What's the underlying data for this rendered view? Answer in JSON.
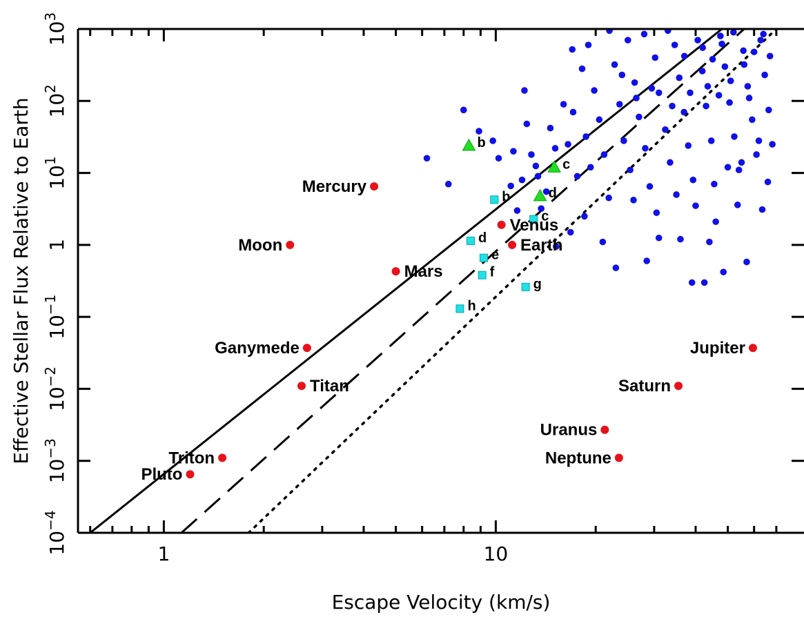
{
  "chart_data": {
    "type": "scatter",
    "xlabel": "Escape Velocity (km/s)",
    "ylabel": "Effective Stellar Flux Relative to Earth",
    "x_scale": "log",
    "y_scale": "log",
    "xlim": [
      0.55,
      70
    ],
    "ylim": [
      0.0001,
      1000
    ],
    "x_ticks": [
      {
        "value": 1,
        "label": "1"
      },
      {
        "value": 10,
        "label": "10"
      }
    ],
    "y_ticks": [
      {
        "value": 0.0001,
        "base": "10",
        "exp": "−4"
      },
      {
        "value": 0.001,
        "base": "10",
        "exp": "−3"
      },
      {
        "value": 0.01,
        "base": "10",
        "exp": "−2"
      },
      {
        "value": 0.1,
        "base": "10",
        "exp": "−1"
      },
      {
        "value": 1,
        "base": "1",
        "exp": ""
      },
      {
        "value": 10,
        "base": "10",
        "exp": "1"
      },
      {
        "value": 100,
        "base": "10",
        "exp": "2"
      },
      {
        "value": 1000,
        "base": "10",
        "exp": "3"
      }
    ],
    "grid": false,
    "lines": [
      {
        "style": "solid",
        "points": [
          [
            0.6,
            0.0001
          ],
          [
            48,
            1000
          ]
        ]
      },
      {
        "style": "dashed",
        "points": [
          [
            1.13,
            0.0001
          ],
          [
            56,
            1000
          ]
        ]
      },
      {
        "style": "dotted",
        "points": [
          [
            1.8,
            0.0001
          ],
          [
            70,
            1000
          ]
        ]
      }
    ],
    "solar_system": {
      "color": "#e8121b",
      "points": [
        {
          "name": "Mercury",
          "x": 4.3,
          "y": 6.5,
          "label_side": "left"
        },
        {
          "name": "Venus",
          "x": 10.4,
          "y": 1.9,
          "label_side": "right"
        },
        {
          "name": "Earth",
          "x": 11.2,
          "y": 1.0,
          "label_side": "right"
        },
        {
          "name": "Moon",
          "x": 2.4,
          "y": 1.0,
          "label_side": "left"
        },
        {
          "name": "Mars",
          "x": 5.0,
          "y": 0.43,
          "label_side": "right"
        },
        {
          "name": "Ganymede",
          "x": 2.7,
          "y": 0.037,
          "label_side": "left"
        },
        {
          "name": "Titan",
          "x": 2.6,
          "y": 0.011,
          "label_side": "right"
        },
        {
          "name": "Triton",
          "x": 1.5,
          "y": 0.0011,
          "label_side": "left"
        },
        {
          "name": "Pluto",
          "x": 1.2,
          "y": 0.00065,
          "label_side": "left"
        },
        {
          "name": "Jupiter",
          "x": 59.5,
          "y": 0.037,
          "label_side": "left"
        },
        {
          "name": "Saturn",
          "x": 35.5,
          "y": 0.011,
          "label_side": "left"
        },
        {
          "name": "Uranus",
          "x": 21.3,
          "y": 0.0027,
          "label_side": "left"
        },
        {
          "name": "Neptune",
          "x": 23.5,
          "y": 0.0011,
          "label_side": "left"
        }
      ]
    },
    "trappist_planets": {
      "color": "#22e0e6",
      "marker": "square",
      "points": [
        {
          "name": "b",
          "x": 9.9,
          "y": 4.25
        },
        {
          "name": "c",
          "x": 13.0,
          "y": 2.27
        },
        {
          "name": "d",
          "x": 8.4,
          "y": 1.14
        },
        {
          "name": "e",
          "x": 9.2,
          "y": 0.66
        },
        {
          "name": "f",
          "x": 9.1,
          "y": 0.38
        },
        {
          "name": "g",
          "x": 12.3,
          "y": 0.26
        },
        {
          "name": "h",
          "x": 7.8,
          "y": 0.13
        }
      ]
    },
    "triangle_planets": {
      "color": "#22dd22",
      "marker": "triangle",
      "points": [
        {
          "name": "b",
          "x": 8.3,
          "y": 24
        },
        {
          "name": "c",
          "x": 15.0,
          "y": 12
        },
        {
          "name": "d",
          "x": 13.6,
          "y": 4.8
        }
      ]
    },
    "exoplanets": {
      "color": "#1010e8",
      "marker": "circle",
      "points": [
        [
          6.2,
          16
        ],
        [
          7.2,
          7
        ],
        [
          8.0,
          75
        ],
        [
          8.9,
          38
        ],
        [
          9.8,
          28
        ],
        [
          10.2,
          16
        ],
        [
          11.1,
          6.6
        ],
        [
          11.3,
          20
        ],
        [
          12.2,
          140
        ],
        [
          12.4,
          48
        ],
        [
          12.8,
          18
        ],
        [
          13.4,
          9
        ],
        [
          13.7,
          3.2
        ],
        [
          14.6,
          42
        ],
        [
          15.1,
          22
        ],
        [
          16.0,
          90
        ],
        [
          16.5,
          25
        ],
        [
          17.1,
          70
        ],
        [
          17.6,
          9
        ],
        [
          18.2,
          280
        ],
        [
          18.7,
          32
        ],
        [
          19.3,
          12
        ],
        [
          19.8,
          140
        ],
        [
          20.5,
          55
        ],
        [
          21.2,
          18
        ],
        [
          21.9,
          4.5
        ],
        [
          22.8,
          320
        ],
        [
          23.6,
          90
        ],
        [
          24.3,
          28
        ],
        [
          25.4,
          11
        ],
        [
          26.2,
          180
        ],
        [
          27.0,
          60
        ],
        [
          28.2,
          22
        ],
        [
          29.1,
          6.5
        ],
        [
          30.2,
          400
        ],
        [
          31.0,
          130
        ],
        [
          32.4,
          40
        ],
        [
          33.5,
          14
        ],
        [
          34.6,
          600
        ],
        [
          35.7,
          210
        ],
        [
          36.9,
          70
        ],
        [
          38.0,
          24
        ],
        [
          39.3,
          8
        ],
        [
          40.6,
          700
        ],
        [
          41.9,
          260
        ],
        [
          43.0,
          85
        ],
        [
          44.6,
          28
        ],
        [
          46.0,
          2.1
        ],
        [
          47.5,
          800
        ],
        [
          49.0,
          300
        ],
        [
          50.6,
          95
        ],
        [
          52.3,
          32
        ],
        [
          54.0,
          11
        ],
        [
          55.7,
          500
        ],
        [
          57.4,
          160
        ],
        [
          59.2,
          55
        ],
        [
          61.0,
          18
        ],
        [
          62.8,
          700
        ],
        [
          64.6,
          230
        ],
        [
          66.4,
          75
        ],
        [
          68.1,
          25
        ],
        [
          22.0,
          950
        ],
        [
          25.0,
          700
        ],
        [
          28.0,
          850
        ],
        [
          33.0,
          950
        ],
        [
          37.0,
          420
        ],
        [
          42.0,
          550
        ],
        [
          45.0,
          380
        ],
        [
          48.0,
          620
        ],
        [
          52.0,
          900
        ],
        [
          56.0,
          320
        ],
        [
          60.0,
          480
        ],
        [
          64.0,
          850
        ],
        [
          67.0,
          420
        ],
        [
          19.0,
          600
        ],
        [
          17.0,
          520
        ],
        [
          24.0,
          230
        ],
        [
          26.5,
          110
        ],
        [
          29.5,
          150
        ],
        [
          34.0,
          85
        ],
        [
          38.5,
          130
        ],
        [
          43.5,
          160
        ],
        [
          47.0,
          120
        ],
        [
          51.0,
          190
        ],
        [
          58.0,
          110
        ],
        [
          36.0,
          1.2
        ],
        [
          39.0,
          0.3
        ],
        [
          42.5,
          0.3
        ],
        [
          44.0,
          1.1
        ],
        [
          48.5,
          0.42
        ],
        [
          53.5,
          3.6
        ],
        [
          57.0,
          0.58
        ],
        [
          63.5,
          3.1
        ],
        [
          66.0,
          7.5
        ],
        [
          31.0,
          1.25
        ],
        [
          28.5,
          0.6
        ],
        [
          23.0,
          0.48
        ],
        [
          21.0,
          1.1
        ],
        [
          18.5,
          2.5
        ],
        [
          16.8,
          1.5
        ],
        [
          15.2,
          0.95
        ],
        [
          26.0,
          4.2
        ],
        [
          30.5,
          2.8
        ],
        [
          35.0,
          5.0
        ],
        [
          40.0,
          3.5
        ],
        [
          45.5,
          7.0
        ],
        [
          50.0,
          12.0
        ],
        [
          55.0,
          14.0
        ],
        [
          62.0,
          28.0
        ],
        [
          14.2,
          5.5
        ],
        [
          13.2,
          12.5
        ],
        [
          12.0,
          8.0
        ],
        [
          11.6,
          3.0
        ]
      ]
    }
  }
}
